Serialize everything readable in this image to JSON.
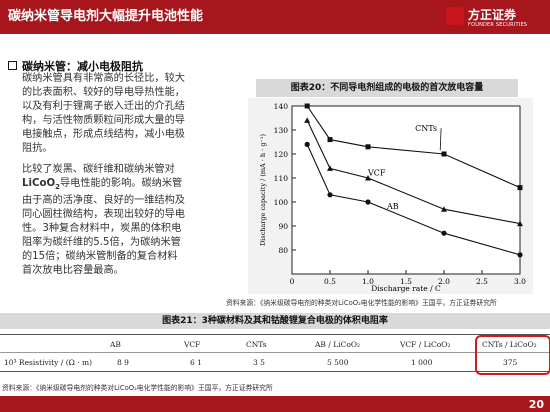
{
  "header": {
    "title": "碳纳米管导电剂大幅提升电池性能"
  },
  "logo": {
    "name_cn": "方正证券",
    "name_en": "FOUNDER SECURITIES"
  },
  "section": {
    "bullet": "碳纳米管：减小电极阻抗",
    "para1": [
      "碳纳米管具有非常高的长径比，较大",
      "的比表面积、较好的导电导热性能，",
      "以及有利于锂离子嵌入迁出的介孔结",
      "构，与活性物质颗粒间形成大量的导",
      "电接触点，形成点线结构，减小电极",
      "阻抗。"
    ],
    "para2_lines": [
      "比较了炭黑、碳纤维和碳纳米管对",
      "导电性能的影响。碳纳米管",
      "由于高的活净度、良好的一维结构及",
      "同心圆柱微结构，表现出较好的导电",
      "性。3种复合材料中，炭黑的体积电",
      "阻率为碳纤维的5.5倍，为碳纳米管",
      "的15倍；碳纳米管制备的复合材料",
      "首次放电比容量最高。"
    ],
    "licoo2_main": "LiCoO",
    "licoo2_sub": "2"
  },
  "figure20": {
    "title": "图表20：不同导电剂组成的电极的首次放电容量",
    "source": "资料来源：《纳米级碳导电剂的种类对LiCoO₂电化学性能的影响》王国平，方正证券研究所"
  },
  "chart_data": {
    "type": "line",
    "x": [
      0.2,
      0.5,
      1.0,
      2.0,
      3.0
    ],
    "xlabel": "Discharge rate / C",
    "ylabel": "Discharge capacity / (mA · h · g⁻¹)",
    "xlim": [
      0,
      3.0
    ],
    "ylim": [
      70,
      140
    ],
    "xticks": [
      "0",
      "0.5",
      "1.0",
      "1.5",
      "2.0",
      "2.5",
      "3.0"
    ],
    "yticks": [
      "80",
      "90",
      "100",
      "110",
      "120",
      "130",
      "140"
    ],
    "series": [
      {
        "name": "CNTs",
        "marker": "square",
        "values": [
          140,
          126,
          123,
          120,
          106
        ]
      },
      {
        "name": "VCF",
        "marker": "triangle",
        "values": [
          134,
          114,
          110,
          97,
          91
        ]
      },
      {
        "name": "AB",
        "marker": "circle",
        "values": [
          124,
          103,
          100,
          87,
          78
        ]
      }
    ],
    "grid": false,
    "legend": "inline labels"
  },
  "figure21": {
    "title": "图表21：3种碳材料及其和钴酸锂复合电极的体积电阻率",
    "header": [
      "AB",
      "VCF",
      "CNTs",
      "AB / LiCoO₂",
      "VCF / LiCoO₂",
      "CNTs / LiCoO₂"
    ],
    "row_label": "10³ Resistivity / (Ω · m)",
    "row_values": [
      "8 9",
      "6 1",
      "3 5",
      "5 500",
      "1 000",
      "375"
    ],
    "source": "资料来源：《纳米级碳导电剂的种类对LiCoO₂电化学性能的影响》王国平，方正证券研究所"
  },
  "page": {
    "number": "20"
  },
  "colors": {
    "brand": "#a8161d",
    "highlight": "#d21a1a"
  }
}
